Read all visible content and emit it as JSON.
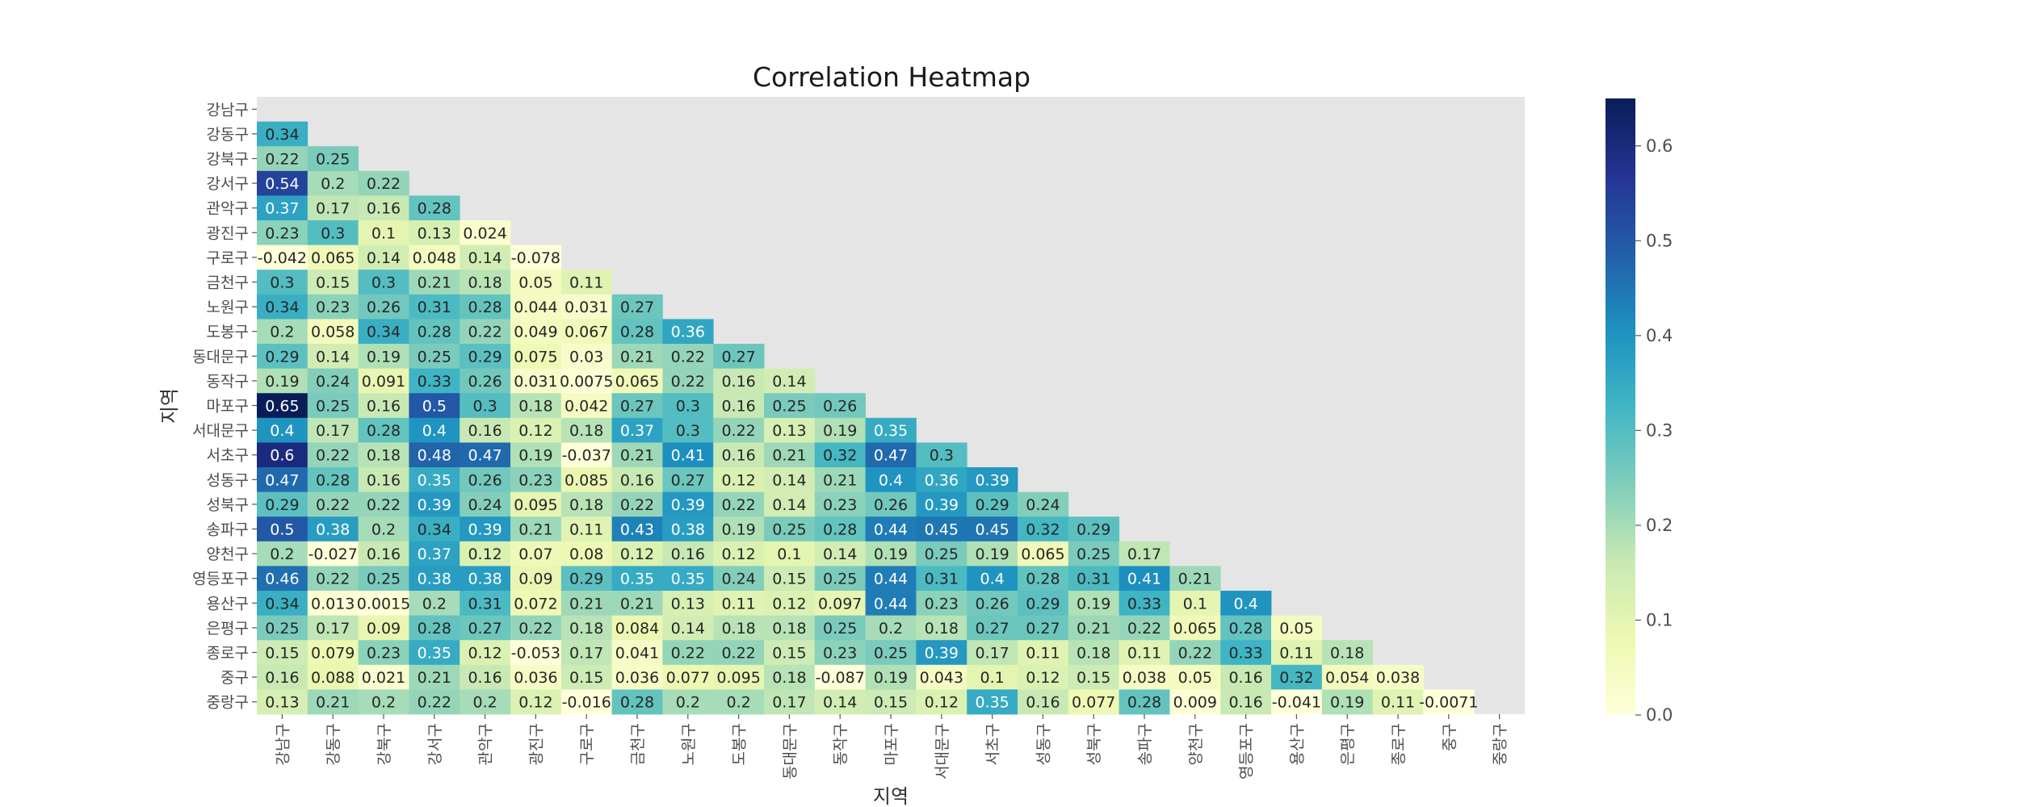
{
  "chart_data": {
    "type": "heatmap",
    "title": "Correlation Heatmap",
    "xlabel": "지역",
    "ylabel": "지역",
    "labels": [
      "강남구",
      "강동구",
      "강북구",
      "강서구",
      "관악구",
      "광진구",
      "구로구",
      "금천구",
      "노원구",
      "도봉구",
      "동대문구",
      "동작구",
      "마포구",
      "서대문구",
      "서초구",
      "성동구",
      "성북구",
      "송파구",
      "양천구",
      "영등포구",
      "용산구",
      "은평구",
      "종로구",
      "중구",
      "중랑구"
    ],
    "lower_triangle_only": true,
    "matrix": [
      [],
      [
        "0.34"
      ],
      [
        "0.22",
        "0.25"
      ],
      [
        "0.54",
        "0.2",
        "0.22"
      ],
      [
        "0.37",
        "0.17",
        "0.16",
        "0.28"
      ],
      [
        "0.23",
        "0.3",
        "0.1",
        "0.13",
        "0.024"
      ],
      [
        "-0.042",
        "0.065",
        "0.14",
        "0.048",
        "0.14",
        "-0.078"
      ],
      [
        "0.3",
        "0.15",
        "0.3",
        "0.21",
        "0.18",
        "0.05",
        "0.11"
      ],
      [
        "0.34",
        "0.23",
        "0.26",
        "0.31",
        "0.28",
        "0.044",
        "0.031",
        "0.27"
      ],
      [
        "0.2",
        "0.058",
        "0.34",
        "0.28",
        "0.22",
        "0.049",
        "0.067",
        "0.28",
        "0.36"
      ],
      [
        "0.29",
        "0.14",
        "0.19",
        "0.25",
        "0.29",
        "0.075",
        "0.03",
        "0.21",
        "0.22",
        "0.27"
      ],
      [
        "0.19",
        "0.24",
        "0.091",
        "0.33",
        "0.26",
        "0.031",
        "0.0075",
        "0.065",
        "0.22",
        "0.16",
        "0.14"
      ],
      [
        "0.65",
        "0.25",
        "0.16",
        "0.5",
        "0.3",
        "0.18",
        "0.042",
        "0.27",
        "0.3",
        "0.16",
        "0.25",
        "0.26"
      ],
      [
        "0.4",
        "0.17",
        "0.28",
        "0.4",
        "0.16",
        "0.12",
        "0.18",
        "0.37",
        "0.3",
        "0.22",
        "0.13",
        "0.19",
        "0.35"
      ],
      [
        "0.6",
        "0.22",
        "0.18",
        "0.48",
        "0.47",
        "0.19",
        "-0.037",
        "0.21",
        "0.41",
        "0.16",
        "0.21",
        "0.32",
        "0.47",
        "0.3"
      ],
      [
        "0.47",
        "0.28",
        "0.16",
        "0.35",
        "0.26",
        "0.23",
        "0.085",
        "0.16",
        "0.27",
        "0.12",
        "0.14",
        "0.21",
        "0.4",
        "0.36",
        "0.39"
      ],
      [
        "0.29",
        "0.22",
        "0.22",
        "0.39",
        "0.24",
        "0.095",
        "0.18",
        "0.22",
        "0.39",
        "0.22",
        "0.14",
        "0.23",
        "0.26",
        "0.39",
        "0.29",
        "0.24"
      ],
      [
        "0.5",
        "0.38",
        "0.2",
        "0.34",
        "0.39",
        "0.21",
        "0.11",
        "0.43",
        "0.38",
        "0.19",
        "0.25",
        "0.28",
        "0.44",
        "0.45",
        "0.45",
        "0.32",
        "0.29"
      ],
      [
        "0.2",
        "-0.027",
        "0.16",
        "0.37",
        "0.12",
        "0.07",
        "0.08",
        "0.12",
        "0.16",
        "0.12",
        "0.1",
        "0.14",
        "0.19",
        "0.25",
        "0.19",
        "0.065",
        "0.25",
        "0.17"
      ],
      [
        "0.46",
        "0.22",
        "0.25",
        "0.38",
        "0.38",
        "0.09",
        "0.29",
        "0.35",
        "0.35",
        "0.24",
        "0.15",
        "0.25",
        "0.44",
        "0.31",
        "0.4",
        "0.28",
        "0.31",
        "0.41",
        "0.21"
      ],
      [
        "0.34",
        "0.013",
        "0.0015",
        "0.2",
        "0.31",
        "0.072",
        "0.21",
        "0.21",
        "0.13",
        "0.11",
        "0.12",
        "0.097",
        "0.44",
        "0.23",
        "0.26",
        "0.29",
        "0.19",
        "0.33",
        "0.1",
        "0.4"
      ],
      [
        "0.25",
        "0.17",
        "0.09",
        "0.28",
        "0.27",
        "0.22",
        "0.18",
        "0.084",
        "0.14",
        "0.18",
        "0.18",
        "0.25",
        "0.2",
        "0.18",
        "0.27",
        "0.27",
        "0.21",
        "0.22",
        "0.065",
        "0.28",
        "0.05"
      ],
      [
        "0.15",
        "0.079",
        "0.23",
        "0.35",
        "0.12",
        "-0.053",
        "0.17",
        "0.041",
        "0.22",
        "0.22",
        "0.15",
        "0.23",
        "0.25",
        "0.39",
        "0.17",
        "0.11",
        "0.18",
        "0.11",
        "0.22",
        "0.33",
        "0.11",
        "0.18"
      ],
      [
        "0.16",
        "0.088",
        "0.021",
        "0.21",
        "0.16",
        "0.036",
        "0.15",
        "0.036",
        "0.077",
        "0.095",
        "0.18",
        "-0.087",
        "0.19",
        "0.043",
        "0.1",
        "0.12",
        "0.15",
        "0.038",
        "0.05",
        "0.16",
        "0.32",
        "0.054",
        "0.038"
      ],
      [
        "0.13",
        "0.21",
        "0.2",
        "0.22",
        "0.2",
        "0.12",
        "-0.016",
        "0.28",
        "0.2",
        "0.2",
        "0.17",
        "0.14",
        "0.15",
        "0.12",
        "0.35",
        "0.16",
        "0.077",
        "0.28",
        "0.009",
        "0.16",
        "-0.041",
        "0.19",
        "0.11",
        "-0.0071"
      ]
    ],
    "colorbar": {
      "colormap": "YlGnBu",
      "vmin": 0.0,
      "vmax": 0.65,
      "ticks": [
        "0.0",
        "0.1",
        "0.2",
        "0.3",
        "0.4",
        "0.5",
        "0.6"
      ]
    },
    "masked_color": "#e5e5e5"
  }
}
